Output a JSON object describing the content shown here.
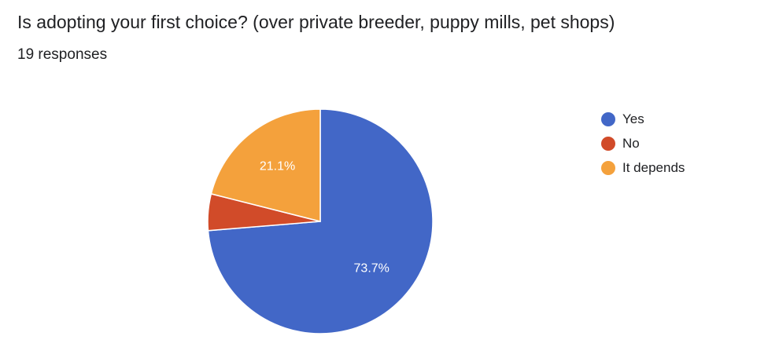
{
  "header": {
    "title": "Is adopting your first choice? (over private breeder, puppy mills, pet shops)",
    "responses": "19 responses"
  },
  "chart_data": {
    "type": "pie",
    "categories": [
      "Yes",
      "No",
      "It depends"
    ],
    "values": [
      14,
      1,
      4
    ],
    "percent_labels": [
      "73.7%",
      "",
      "21.1%"
    ],
    "colors": [
      "#4267c7",
      "#d14b29",
      "#f4a13c"
    ],
    "legend_position": "right"
  }
}
